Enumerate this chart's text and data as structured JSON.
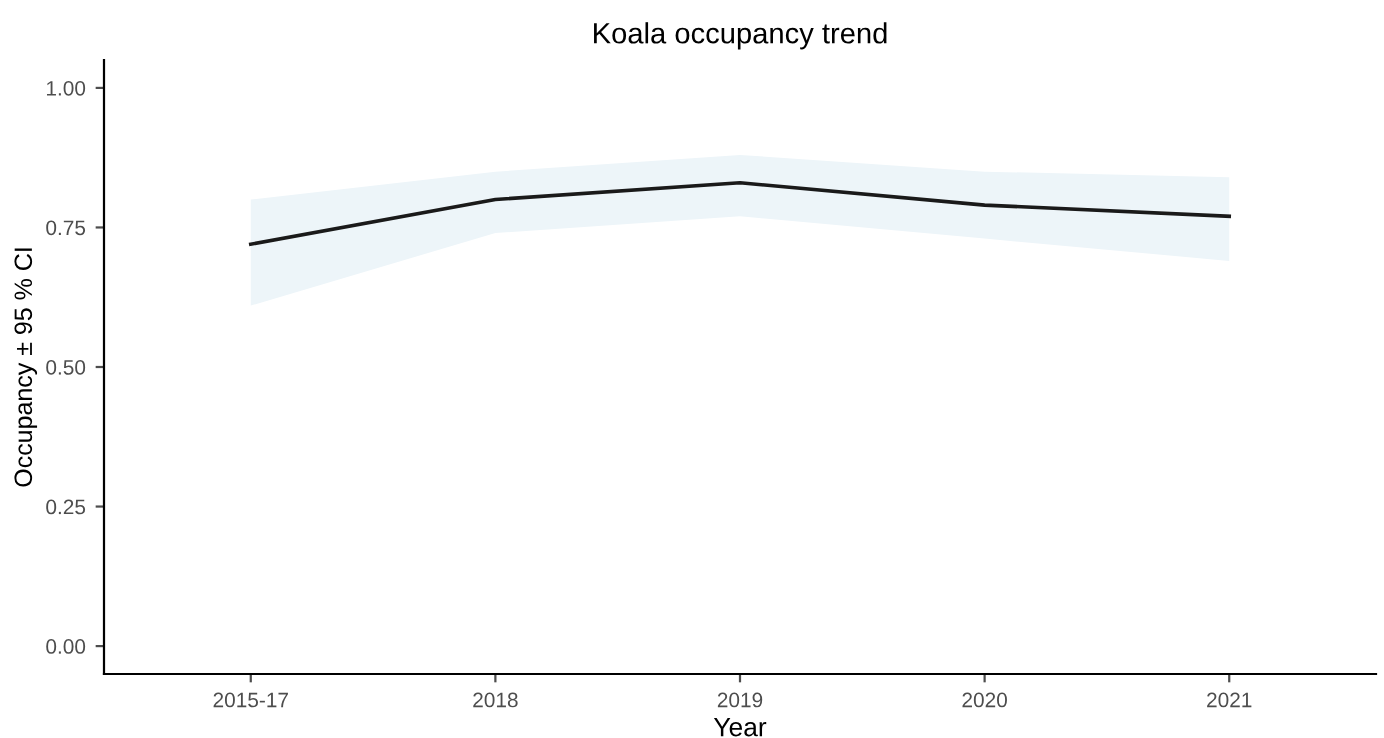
{
  "chart_data": {
    "type": "line",
    "title": "Koala occupancy trend",
    "xlabel": "Year",
    "ylabel": "Occupancy ± 95 % CI",
    "categories": [
      "2015-17",
      "2018",
      "2019",
      "2020",
      "2021"
    ],
    "series": [
      {
        "color": "#1a1a1a",
        "values": [
          0.72,
          0.8,
          0.83,
          0.79,
          0.77
        ],
        "lower": [
          0.61,
          0.74,
          0.77,
          0.73,
          0.69
        ],
        "upper": [
          0.8,
          0.85,
          0.88,
          0.85,
          0.84
        ]
      }
    ],
    "ylim": [
      -0.05,
      1.05
    ],
    "yticks": [
      {
        "value": 0,
        "label": "0.00"
      },
      {
        "value": 0.25,
        "label": "0.25"
      },
      {
        "value": 0.5,
        "label": "0.50"
      },
      {
        "value": 0.75,
        "label": "0.75"
      },
      {
        "value": 1,
        "label": "1.00"
      }
    ],
    "grid": false,
    "line_style": "solid",
    "marker": "none"
  }
}
